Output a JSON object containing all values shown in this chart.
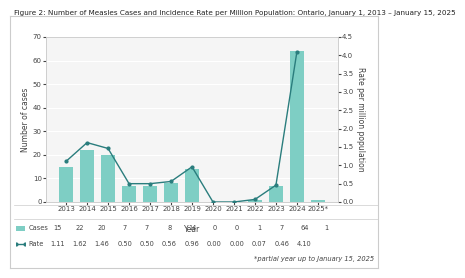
{
  "title": "Figure 2: Number of Measles Cases and Incidence Rate per Million Population: Ontario, January 1, 2013 – January 15, 2025",
  "years": [
    "2013",
    "2014",
    "2015",
    "2016",
    "2017",
    "2018",
    "2019",
    "2020",
    "2021",
    "2022",
    "2023",
    "2024",
    "2025*"
  ],
  "cases": [
    15,
    22,
    20,
    7,
    7,
    8,
    14,
    0,
    0,
    1,
    7,
    64,
    1
  ],
  "rates": [
    1.11,
    1.62,
    1.46,
    0.5,
    0.5,
    0.56,
    0.96,
    0.0,
    0.0,
    0.07,
    0.46,
    4.1,
    null
  ],
  "bar_color": "#7ECEC4",
  "line_color": "#2a7d7d",
  "ylabel_left": "Number of cases",
  "ylabel_right": "Rate per million population",
  "xlabel": "Year",
  "ylim_left": [
    0,
    70
  ],
  "ylim_right": [
    0,
    4.5
  ],
  "yticks_left": [
    0,
    10,
    20,
    30,
    40,
    50,
    60,
    70
  ],
  "yticks_right": [
    0.0,
    0.5,
    1.0,
    1.5,
    2.0,
    2.5,
    3.0,
    3.5,
    4.0,
    4.5
  ],
  "legend_cases_label": "Cases",
  "legend_rate_label": "Rate",
  "annotation": "*partial year up to January 15, 2025",
  "table_cases": [
    "15",
    "22",
    "20",
    "7",
    "7",
    "8",
    "14",
    "0",
    "0",
    "1",
    "7",
    "64",
    "1"
  ],
  "table_rates": [
    "1.11",
    "1.62",
    "1.46",
    "0.50",
    "0.50",
    "0.56",
    "0.96",
    "0.00",
    "0.00",
    "0.07",
    "0.46",
    "4.10",
    ""
  ],
  "bg_color": "#ffffff",
  "plot_bg_color": "#f5f5f5",
  "border_color": "#cccccc",
  "text_color": "#444444",
  "grid_color": "#ffffff",
  "title_fontsize": 5.2,
  "axis_label_fontsize": 5.5,
  "tick_fontsize": 5.0,
  "table_fontsize": 4.8
}
